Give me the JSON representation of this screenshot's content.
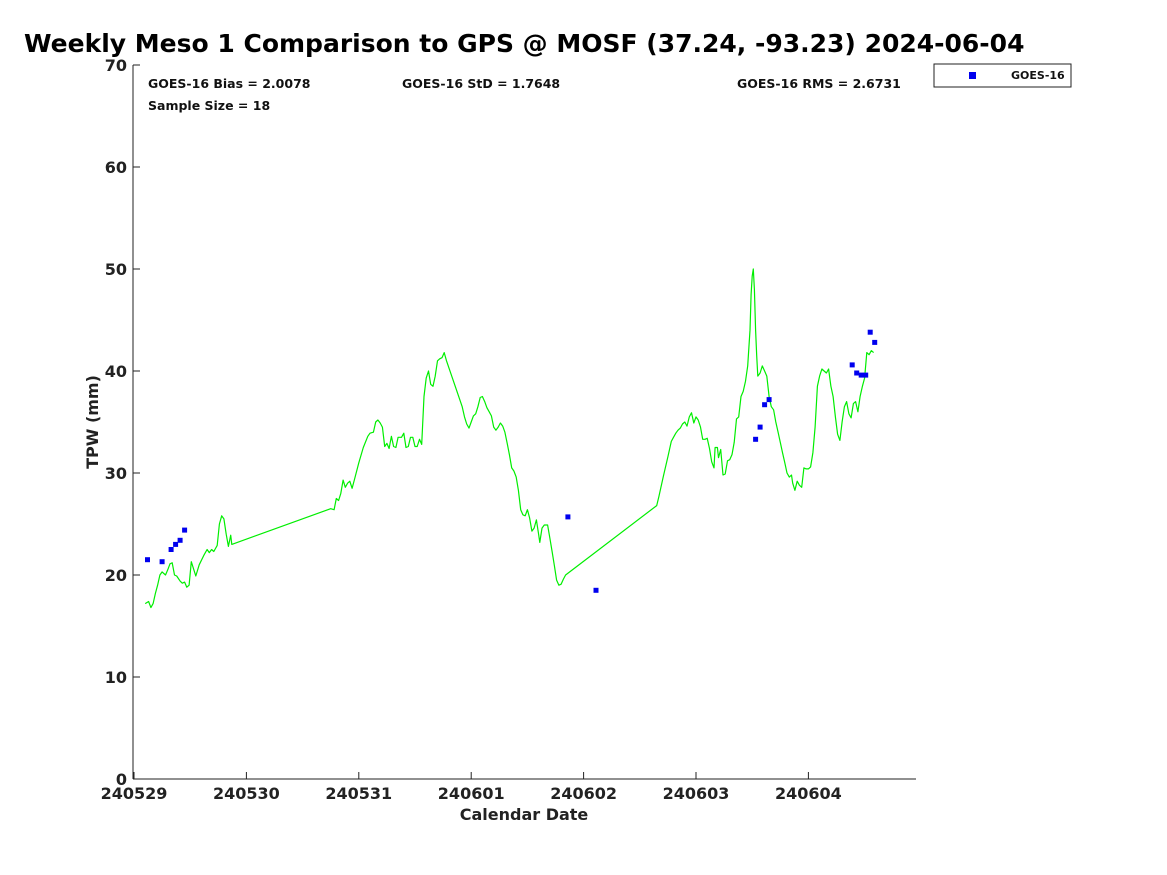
{
  "chart_data": {
    "type": "line",
    "title": "Weekly Meso 1 Comparison to GPS @ MOSF (37.24, -93.23) 2024-06-04",
    "xlabel": "Calendar Date",
    "ylabel": "TPW (mm)",
    "ylim": [
      0,
      70
    ],
    "xlim": [
      "240529",
      "240605"
    ],
    "x_ticks": [
      "240529",
      "240530",
      "240531",
      "240601",
      "240602",
      "240603",
      "240604"
    ],
    "y_ticks": [
      "0",
      "10",
      "20",
      "30",
      "40",
      "50",
      "60",
      "70"
    ],
    "grid": false,
    "legend_position": "top-right, outside plot",
    "stats": {
      "bias": "GOES-16 Bias = 2.0078",
      "std": "GOES-16 StD = 1.7648",
      "rms": "GOES-16 RMS = 2.6731",
      "sample": "Sample Size = 18"
    },
    "series": [
      {
        "kind": "line",
        "color": "#00ee00",
        "points": [
          [
            0.1,
            17.2
          ],
          [
            0.13,
            17.4
          ],
          [
            0.15,
            16.8
          ],
          [
            0.17,
            17.2
          ],
          [
            0.19,
            18.2
          ],
          [
            0.21,
            19.0
          ],
          [
            0.23,
            20.0
          ],
          [
            0.25,
            20.3
          ],
          [
            0.28,
            20.0
          ],
          [
            0.3,
            20.5
          ],
          [
            0.32,
            21.1
          ],
          [
            0.34,
            21.2
          ],
          [
            0.36,
            20.0
          ],
          [
            0.38,
            19.9
          ],
          [
            0.41,
            19.4
          ],
          [
            0.43,
            19.2
          ],
          [
            0.45,
            19.3
          ],
          [
            0.47,
            18.8
          ],
          [
            0.49,
            19.0
          ],
          [
            0.51,
            21.3
          ],
          [
            0.55,
            19.9
          ],
          [
            0.58,
            21.0
          ],
          [
            0.62,
            21.9
          ],
          [
            0.65,
            22.5
          ],
          [
            0.67,
            22.2
          ],
          [
            0.69,
            22.5
          ],
          [
            0.71,
            22.3
          ],
          [
            0.74,
            22.9
          ],
          [
            0.76,
            25.0
          ],
          [
            0.78,
            25.8
          ],
          [
            0.8,
            25.5
          ],
          [
            0.82,
            24.0
          ],
          [
            0.84,
            22.8
          ],
          [
            0.86,
            23.9
          ],
          [
            0.87,
            23.0
          ],
          [
            1.75,
            26.5
          ],
          [
            1.78,
            26.4
          ],
          [
            1.8,
            27.5
          ],
          [
            1.82,
            27.3
          ],
          [
            1.84,
            28.0
          ],
          [
            1.86,
            29.3
          ],
          [
            1.88,
            28.6
          ],
          [
            1.9,
            29.0
          ],
          [
            1.92,
            29.2
          ],
          [
            1.94,
            28.5
          ],
          [
            1.96,
            29.3
          ],
          [
            2.0,
            31.0
          ],
          [
            2.04,
            32.5
          ],
          [
            2.08,
            33.6
          ],
          [
            2.1,
            33.9
          ],
          [
            2.13,
            34.0
          ],
          [
            2.15,
            35.0
          ],
          [
            2.17,
            35.2
          ],
          [
            2.19,
            34.9
          ],
          [
            2.21,
            34.5
          ],
          [
            2.23,
            32.6
          ],
          [
            2.25,
            32.9
          ],
          [
            2.27,
            32.4
          ],
          [
            2.29,
            33.6
          ],
          [
            2.31,
            32.6
          ],
          [
            2.33,
            32.5
          ],
          [
            2.35,
            33.5
          ],
          [
            2.38,
            33.5
          ],
          [
            2.4,
            33.9
          ],
          [
            2.42,
            32.5
          ],
          [
            2.44,
            32.6
          ],
          [
            2.46,
            33.5
          ],
          [
            2.48,
            33.5
          ],
          [
            2.5,
            32.6
          ],
          [
            2.52,
            32.6
          ],
          [
            2.54,
            33.3
          ],
          [
            2.56,
            32.8
          ],
          [
            2.58,
            37.5
          ],
          [
            2.6,
            39.3
          ],
          [
            2.62,
            40.0
          ],
          [
            2.64,
            38.7
          ],
          [
            2.66,
            38.5
          ],
          [
            2.68,
            39.5
          ],
          [
            2.7,
            41.0
          ],
          [
            2.72,
            41.2
          ],
          [
            2.74,
            41.3
          ],
          [
            2.76,
            41.8
          ],
          [
            2.78,
            41.0
          ],
          [
            2.92,
            36.5
          ],
          [
            2.94,
            35.5
          ],
          [
            2.96,
            34.8
          ],
          [
            2.98,
            34.4
          ],
          [
            3.0,
            35.0
          ],
          [
            3.02,
            35.6
          ],
          [
            3.04,
            35.8
          ],
          [
            3.06,
            36.5
          ],
          [
            3.08,
            37.4
          ],
          [
            3.1,
            37.5
          ],
          [
            3.12,
            37.0
          ],
          [
            3.14,
            36.4
          ],
          [
            3.16,
            36.0
          ],
          [
            3.18,
            35.6
          ],
          [
            3.2,
            34.5
          ],
          [
            3.22,
            34.2
          ],
          [
            3.24,
            34.5
          ],
          [
            3.26,
            34.9
          ],
          [
            3.28,
            34.6
          ],
          [
            3.3,
            34.0
          ],
          [
            3.32,
            32.9
          ],
          [
            3.34,
            31.8
          ],
          [
            3.36,
            30.5
          ],
          [
            3.38,
            30.2
          ],
          [
            3.4,
            29.6
          ],
          [
            3.42,
            28.3
          ],
          [
            3.44,
            26.4
          ],
          [
            3.46,
            25.9
          ],
          [
            3.48,
            25.8
          ],
          [
            3.5,
            26.4
          ],
          [
            3.52,
            25.6
          ],
          [
            3.54,
            24.3
          ],
          [
            3.56,
            24.6
          ],
          [
            3.58,
            25.4
          ],
          [
            3.6,
            24.0
          ],
          [
            3.61,
            23.2
          ],
          [
            3.63,
            24.6
          ],
          [
            3.65,
            24.9
          ],
          [
            3.68,
            24.9
          ],
          [
            3.7,
            23.6
          ],
          [
            3.72,
            22.3
          ],
          [
            3.74,
            20.9
          ],
          [
            3.76,
            19.5
          ],
          [
            3.78,
            19.0
          ],
          [
            3.8,
            19.1
          ],
          [
            3.82,
            19.6
          ],
          [
            3.84,
            20.0
          ],
          [
            4.65,
            26.8
          ],
          [
            4.67,
            27.7
          ],
          [
            4.71,
            29.7
          ],
          [
            4.75,
            31.6
          ],
          [
            4.78,
            33.1
          ],
          [
            4.8,
            33.5
          ],
          [
            4.82,
            33.9
          ],
          [
            4.84,
            34.2
          ],
          [
            4.86,
            34.4
          ],
          [
            4.88,
            34.8
          ],
          [
            4.9,
            35.0
          ],
          [
            4.92,
            34.6
          ],
          [
            4.94,
            35.5
          ],
          [
            4.96,
            35.9
          ],
          [
            4.98,
            34.9
          ],
          [
            5.0,
            35.5
          ],
          [
            5.02,
            35.2
          ],
          [
            5.04,
            34.5
          ],
          [
            5.06,
            33.3
          ],
          [
            5.08,
            33.3
          ],
          [
            5.1,
            33.4
          ],
          [
            5.12,
            32.4
          ],
          [
            5.14,
            31.1
          ],
          [
            5.16,
            30.5
          ],
          [
            5.17,
            32.5
          ],
          [
            5.19,
            32.5
          ],
          [
            5.2,
            31.5
          ],
          [
            5.22,
            32.3
          ],
          [
            5.24,
            29.8
          ],
          [
            5.26,
            29.9
          ],
          [
            5.28,
            31.2
          ],
          [
            5.3,
            31.3
          ],
          [
            5.32,
            31.8
          ],
          [
            5.34,
            33.0
          ],
          [
            5.36,
            35.3
          ],
          [
            5.38,
            35.5
          ],
          [
            5.4,
            37.5
          ],
          [
            5.42,
            38.0
          ],
          [
            5.44,
            39.0
          ],
          [
            5.46,
            40.5
          ],
          [
            5.48,
            44.0
          ],
          [
            5.49,
            47.5
          ],
          [
            5.5,
            49.3
          ],
          [
            5.51,
            50.0
          ],
          [
            5.52,
            48.0
          ],
          [
            5.53,
            44.0
          ],
          [
            5.54,
            41.5
          ],
          [
            5.55,
            39.5
          ],
          [
            5.57,
            39.8
          ],
          [
            5.59,
            40.5
          ],
          [
            5.61,
            40.0
          ],
          [
            5.63,
            39.5
          ],
          [
            5.65,
            37.5
          ],
          [
            5.67,
            36.5
          ],
          [
            5.69,
            36.2
          ],
          [
            5.71,
            35.0
          ],
          [
            5.73,
            34.0
          ],
          [
            5.75,
            33.0
          ],
          [
            5.77,
            32.0
          ],
          [
            5.79,
            31.0
          ],
          [
            5.81,
            30.0
          ],
          [
            5.83,
            29.6
          ],
          [
            5.85,
            29.8
          ],
          [
            5.86,
            29.0
          ],
          [
            5.88,
            28.3
          ],
          [
            5.9,
            29.2
          ],
          [
            5.92,
            28.8
          ],
          [
            5.94,
            28.6
          ],
          [
            5.96,
            30.5
          ],
          [
            5.98,
            30.4
          ],
          [
            6.0,
            30.4
          ],
          [
            6.02,
            30.6
          ],
          [
            6.04,
            32.0
          ],
          [
            6.06,
            34.5
          ],
          [
            6.08,
            38.5
          ],
          [
            6.1,
            39.5
          ],
          [
            6.12,
            40.2
          ],
          [
            6.14,
            40.0
          ],
          [
            6.16,
            39.8
          ],
          [
            6.18,
            40.2
          ],
          [
            6.2,
            38.5
          ],
          [
            6.22,
            37.5
          ],
          [
            6.24,
            35.5
          ],
          [
            6.26,
            33.8
          ],
          [
            6.28,
            33.2
          ],
          [
            6.3,
            35.0
          ],
          [
            6.32,
            36.5
          ],
          [
            6.34,
            37.0
          ],
          [
            6.36,
            35.8
          ],
          [
            6.38,
            35.4
          ],
          [
            6.4,
            36.8
          ],
          [
            6.42,
            37.0
          ],
          [
            6.44,
            36.0
          ],
          [
            6.46,
            37.5
          ],
          [
            6.48,
            38.5
          ],
          [
            6.5,
            39.3
          ],
          [
            6.52,
            41.8
          ],
          [
            6.54,
            41.6
          ],
          [
            6.56,
            42.0
          ],
          [
            6.58,
            41.8
          ]
        ]
      },
      {
        "kind": "scatter",
        "name": "GOES-16",
        "color": "#0000ee",
        "points": [
          [
            0.12,
            21.5
          ],
          [
            0.25,
            21.3
          ],
          [
            0.33,
            22.5
          ],
          [
            0.37,
            23.0
          ],
          [
            0.41,
            23.4
          ],
          [
            0.45,
            24.4
          ],
          [
            3.86,
            25.7
          ],
          [
            4.11,
            18.5
          ],
          [
            5.53,
            33.3
          ],
          [
            5.57,
            34.5
          ],
          [
            5.61,
            36.7
          ],
          [
            5.65,
            37.2
          ],
          [
            6.39,
            40.6
          ],
          [
            6.43,
            39.8
          ],
          [
            6.47,
            39.6
          ],
          [
            6.51,
            39.6
          ],
          [
            6.55,
            43.8
          ],
          [
            6.59,
            42.8
          ]
        ]
      }
    ]
  }
}
